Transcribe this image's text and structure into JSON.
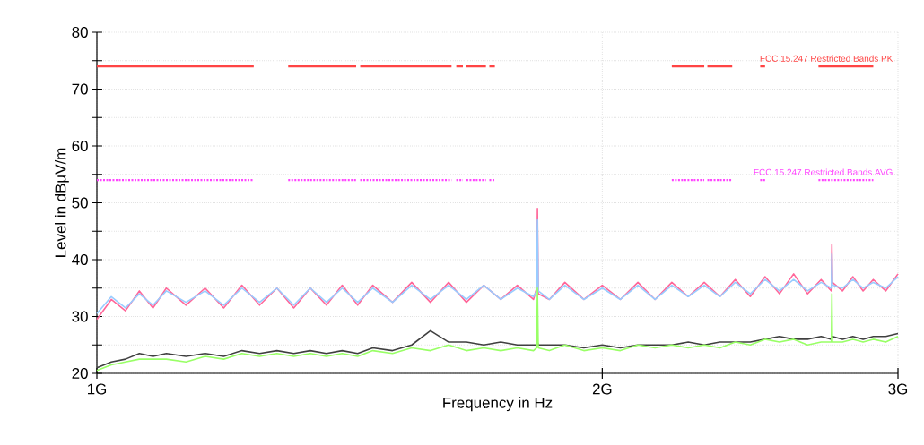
{
  "chart_data": {
    "type": "line",
    "xlabel": "Frequency in Hz",
    "ylabel": "Level in dBµV/m",
    "log": "x",
    "grid": true,
    "marker": "none",
    "xlim": [
      1,
      3
    ],
    "ylim": [
      20,
      80
    ],
    "xticks": [
      {
        "value": 1,
        "label": "1G"
      },
      {
        "value": 2,
        "label": "2G"
      },
      {
        "value": 3,
        "label": "3G"
      }
    ],
    "yticks": [
      20,
      {
        "value": 25,
        "label": null
      },
      30,
      {
        "value": 35,
        "label": null
      },
      40,
      {
        "value": 45,
        "label": null
      },
      50,
      {
        "value": 55,
        "label": null
      },
      60,
      {
        "value": 65,
        "label": null
      },
      70,
      {
        "value": 75,
        "label": null
      },
      80
    ],
    "x": [
      1.0,
      1.02,
      1.04,
      1.06,
      1.08,
      1.1,
      1.13,
      1.16,
      1.19,
      1.22,
      1.25,
      1.28,
      1.31,
      1.34,
      1.37,
      1.4,
      1.43,
      1.46,
      1.5,
      1.54,
      1.58,
      1.62,
      1.66,
      1.7,
      1.74,
      1.78,
      1.82,
      1.828,
      1.83,
      1.832,
      1.86,
      1.9,
      1.95,
      2.0,
      2.05,
      2.1,
      2.15,
      2.2,
      2.25,
      2.3,
      2.35,
      2.4,
      2.45,
      2.5,
      2.55,
      2.6,
      2.65,
      2.7,
      2.738,
      2.74,
      2.742,
      2.78,
      2.82,
      2.86,
      2.9,
      2.95,
      3.0
    ],
    "series": [
      {
        "name": "FCC 15.247 Restricted Bands PK",
        "color": "#ff4444",
        "line_style": "solid",
        "x": [
          1.0,
          1.24,
          1.27,
          1.3,
          1.427,
          1.431,
          1.435,
          1.6265,
          1.632,
          1.637,
          1.652,
          1.656,
          1.66,
          1.705,
          1.709,
          1.713,
          1.726,
          1.96,
          2.2,
          2.3,
          2.305,
          2.31,
          2.39,
          2.44,
          2.4835,
          2.5,
          2.6,
          2.69,
          2.9
        ],
        "values": [
          74,
          74,
          null,
          74,
          74,
          null,
          74,
          74,
          null,
          74,
          74,
          null,
          74,
          74,
          null,
          74,
          74,
          null,
          74,
          74,
          null,
          74,
          74,
          null,
          74,
          74,
          null,
          74,
          74
        ]
      },
      {
        "name": "FCC 15.247 Restricted Bands AVG",
        "color": "#ff44ff",
        "line_style": "dotted",
        "x": [
          1.0,
          1.24,
          1.27,
          1.3,
          1.427,
          1.431,
          1.435,
          1.6265,
          1.632,
          1.637,
          1.652,
          1.656,
          1.66,
          1.705,
          1.709,
          1.713,
          1.726,
          1.96,
          2.2,
          2.3,
          2.305,
          2.31,
          2.39,
          2.44,
          2.4835,
          2.5,
          2.6,
          2.69,
          2.9
        ],
        "values": [
          54,
          54,
          null,
          54,
          54,
          null,
          54,
          54,
          null,
          54,
          54,
          null,
          54,
          54,
          null,
          54,
          54,
          null,
          54,
          54,
          null,
          54,
          54,
          null,
          54,
          54,
          null,
          54,
          54
        ]
      },
      {
        "color": "#ff6699",
        "values": [
          29.5,
          33,
          31,
          34.5,
          31.5,
          35,
          32,
          35,
          31.5,
          35.5,
          32,
          35,
          31.5,
          35,
          32,
          35.5,
          32,
          35.5,
          32.5,
          36,
          32.5,
          36,
          32.5,
          35.5,
          33,
          35.5,
          33,
          35,
          49,
          34,
          33,
          36,
          33,
          35.5,
          33,
          36,
          33,
          36,
          33.5,
          36,
          33.5,
          36.5,
          33.5,
          37,
          34,
          37.5,
          34,
          36.5,
          34.5,
          42.7,
          36,
          34.5,
          37,
          34.5,
          36.5,
          34.5,
          37.5
        ]
      },
      {
        "color": "#99ccff",
        "values": [
          30.5,
          33.5,
          31.5,
          34,
          32,
          34.5,
          32.5,
          34.5,
          32,
          35,
          32.5,
          35,
          32,
          35,
          32.5,
          35,
          32.5,
          35,
          32.5,
          35.5,
          33,
          35.5,
          33,
          35.5,
          33,
          35,
          33.5,
          34.5,
          47,
          34.5,
          33,
          35.5,
          33,
          35,
          33,
          35.5,
          33,
          35.5,
          33.5,
          35.5,
          33.5,
          36,
          34,
          36.5,
          34.5,
          36.5,
          34.5,
          36,
          35,
          41,
          35.5,
          35,
          36.5,
          35,
          36,
          35,
          37
        ]
      },
      {
        "color": "#404040",
        "values": [
          21,
          22,
          22.5,
          23.5,
          23,
          23.5,
          23,
          23.5,
          23,
          24,
          23.5,
          24,
          23.5,
          24,
          23.5,
          24,
          23.5,
          24.5,
          24,
          25,
          27.5,
          25.5,
          25.5,
          25,
          25.5,
          25,
          25,
          25,
          25.5,
          25,
          25,
          25,
          24.5,
          25,
          24.5,
          25,
          25,
          25,
          25.5,
          25,
          25.5,
          25.5,
          25.5,
          26,
          26.5,
          26,
          26,
          26.5,
          26,
          26.5,
          26.5,
          26,
          26.5,
          26,
          26.5,
          26.5,
          27
        ]
      },
      {
        "color": "#99ff66",
        "values": [
          20.5,
          21.5,
          22,
          22.5,
          22.5,
          22.5,
          22,
          23,
          22.5,
          23.5,
          23,
          23.5,
          23,
          23.5,
          23,
          23.5,
          23,
          24,
          23.5,
          24.5,
          24,
          25,
          24,
          24.5,
          24,
          24.5,
          24,
          24.5,
          35,
          24.5,
          24,
          25,
          24,
          24.5,
          24,
          25,
          24.5,
          25,
          24.5,
          25,
          24.5,
          25.5,
          25,
          26,
          25.5,
          26,
          25,
          25.5,
          25.5,
          34,
          25.5,
          25.5,
          26,
          25.5,
          26,
          25.5,
          26.5
        ]
      }
    ]
  }
}
